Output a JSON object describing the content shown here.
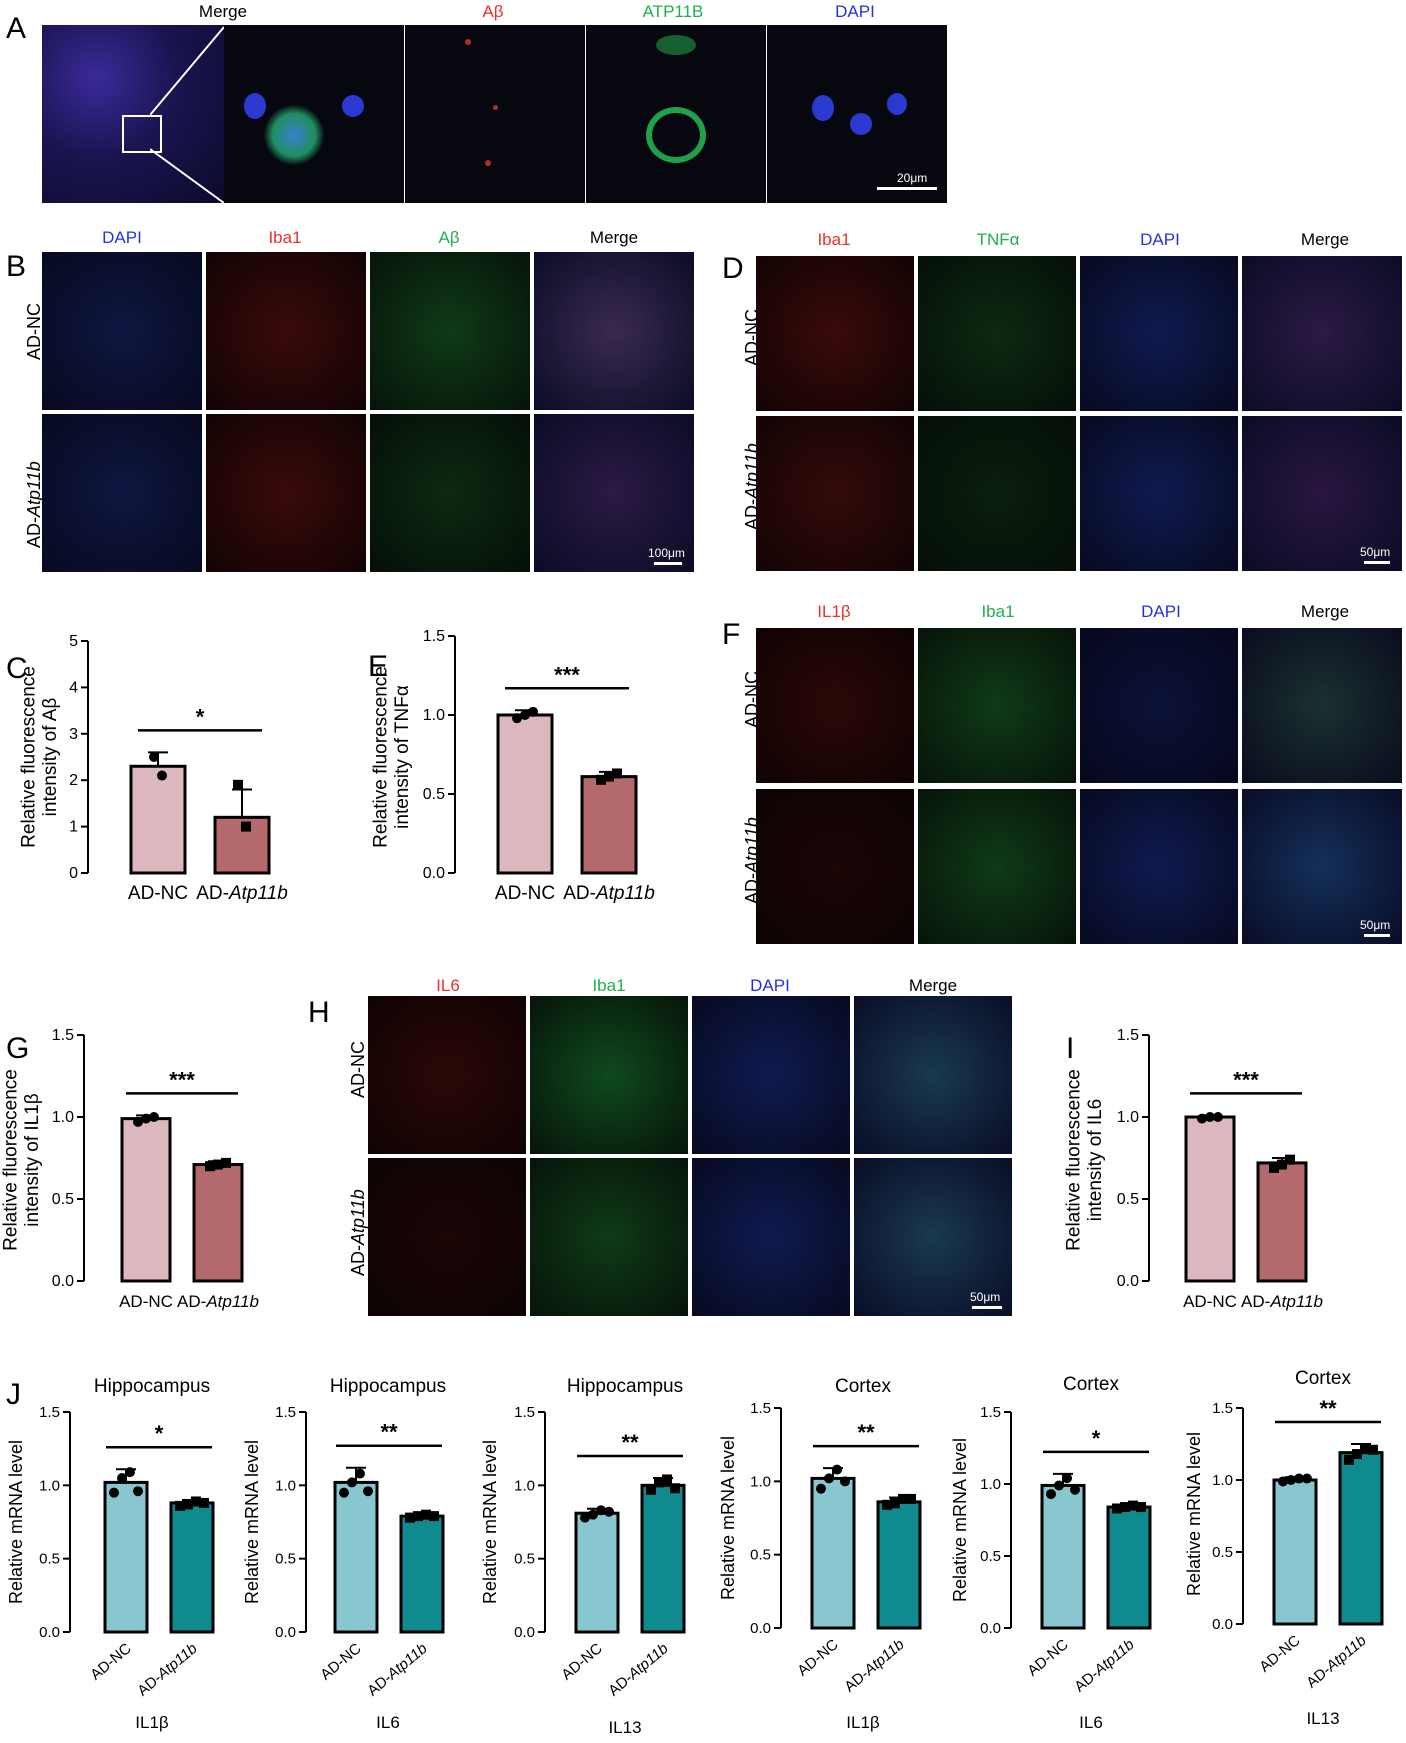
{
  "panels": {
    "A": {
      "letter": "A",
      "channels": [
        "Merge",
        "Aβ",
        "ATP11B",
        "DAPI"
      ],
      "scale": "20μm"
    },
    "B": {
      "letter": "B",
      "channels": [
        "DAPI",
        "Iba1",
        "Aβ",
        "Merge"
      ],
      "rows": [
        "AD-NC",
        "AD-Atp11b"
      ],
      "scale": "100μm"
    },
    "D": {
      "letter": "D",
      "channels": [
        "Iba1",
        "TNFα",
        "DAPI",
        "Merge"
      ],
      "rows": [
        "AD-NC",
        "AD-Atp11b"
      ],
      "scale": "50μm"
    },
    "F": {
      "letter": "F",
      "channels": [
        "IL1β",
        "Iba1",
        "DAPI",
        "Merge"
      ],
      "rows": [
        "AD-NC",
        "AD-Atp11b"
      ],
      "scale": "50μm"
    },
    "H": {
      "letter": "H",
      "channels": [
        "IL6",
        "Iba1",
        "DAPI",
        "Merge"
      ],
      "rows": [
        "AD-NC",
        "AD-Atp11b"
      ],
      "scale": "50μm"
    }
  },
  "colors": {
    "red": "#e8312b",
    "green": "#1fb04a",
    "blue": "#2233dd",
    "pink": "#dcb8be",
    "rose": "#b46a6c",
    "teal_light": "#88c7cf",
    "teal_dark": "#0f8a8f"
  },
  "chart_data": [
    {
      "id": "C",
      "letter": "C",
      "type": "bar",
      "categories": [
        "AD-NC",
        "AD-Atp11b"
      ],
      "values": [
        2.3,
        1.2
      ],
      "errors": [
        0.3,
        0.6
      ],
      "points": [
        [
          2.5,
          2.1
        ],
        [
          1.9,
          1.0
        ]
      ],
      "ylabel": "Relative fluorescence intensity of Aβ",
      "ylim": [
        0,
        5
      ],
      "ticks": [
        0,
        1,
        2,
        3,
        4,
        5
      ],
      "sig": "*",
      "title": "",
      "xlabel": ""
    },
    {
      "id": "E",
      "letter": "E",
      "type": "bar",
      "categories": [
        "AD-NC",
        "AD-Atp11b"
      ],
      "values": [
        1.0,
        0.61
      ],
      "errors": [
        0.03,
        0.03
      ],
      "points": [
        [
          0.98,
          1.0,
          1.02
        ],
        [
          0.59,
          0.61,
          0.63
        ]
      ],
      "ylabel": "Relative fluorescence intensity of TNFα",
      "ylim": [
        0,
        1.5
      ],
      "ticks": [
        "0.0",
        "0.5",
        "1.0",
        "1.5"
      ],
      "sig": "***",
      "title": "",
      "xlabel": ""
    },
    {
      "id": "G",
      "letter": "G",
      "type": "bar",
      "categories": [
        "AD-NC",
        "AD-Atp11b"
      ],
      "values": [
        0.99,
        0.71
      ],
      "errors": [
        0.02,
        0.02
      ],
      "points": [
        [
          0.97,
          0.99,
          1.0
        ],
        [
          0.7,
          0.71,
          0.72
        ]
      ],
      "ylabel": "Relative fluorescence intensity of IL1β",
      "ylim": [
        0,
        1.5
      ],
      "ticks": [
        "0.0",
        "0.5",
        "1.0",
        "1.5"
      ],
      "sig": "***",
      "title": "",
      "xlabel": ""
    },
    {
      "id": "I",
      "letter": "I",
      "type": "bar",
      "categories": [
        "AD-NC",
        "AD-Atp11b"
      ],
      "values": [
        1.0,
        0.72
      ],
      "errors": [
        0.01,
        0.03
      ],
      "points": [
        [
          0.99,
          1.0,
          1.0
        ],
        [
          0.69,
          0.71,
          0.74
        ]
      ],
      "ylabel": "Relative fluorescence intensity of IL6",
      "ylim": [
        0,
        1.5
      ],
      "ticks": [
        "0.0",
        "0.5",
        "1.0",
        "1.5"
      ],
      "sig": "***",
      "title": "",
      "xlabel": ""
    },
    {
      "id": "J1",
      "letter": "J",
      "type": "bar",
      "title": "Hippocampus",
      "xlabel": "IL1β",
      "categories": [
        "AD-NC",
        "AD-Atp11b"
      ],
      "values": [
        1.02,
        0.88
      ],
      "errors": [
        0.09,
        0.02
      ],
      "points": [
        [
          0.95,
          1.05,
          1.09,
          0.96
        ],
        [
          0.86,
          0.87,
          0.89,
          0.88
        ]
      ],
      "ylabel": "Relative mRNA level",
      "ylim": [
        0,
        1.5
      ],
      "ticks": [
        "0.0",
        "0.5",
        "1.0",
        "1.5"
      ],
      "sig": "*"
    },
    {
      "id": "J2",
      "type": "bar",
      "title": "Hippocampus",
      "xlabel": "IL6",
      "categories": [
        "AD-NC",
        "AD-Atp11b"
      ],
      "values": [
        1.02,
        0.79
      ],
      "errors": [
        0.1,
        0.01
      ],
      "points": [
        [
          0.95,
          1.02,
          1.08,
          0.96
        ],
        [
          0.78,
          0.79,
          0.8,
          0.79
        ]
      ],
      "ylabel": "Relative mRNA level",
      "ylim": [
        0,
        1.5
      ],
      "ticks": [
        "0.0",
        "0.5",
        "1.0",
        "1.5"
      ],
      "sig": "**"
    },
    {
      "id": "J3",
      "type": "bar",
      "title": "Hippocampus",
      "xlabel": "IL13",
      "categories": [
        "AD-NC",
        "AD-Atp11b"
      ],
      "values": [
        0.81,
        1.0
      ],
      "errors": [
        0.03,
        0.05
      ],
      "points": [
        [
          0.78,
          0.8,
          0.83,
          0.82
        ],
        [
          0.97,
          1.02,
          1.04,
          0.98
        ]
      ],
      "ylabel": "Relative mRNA level",
      "ylim": [
        0,
        1.5
      ],
      "ticks": [
        "0.0",
        "0.5",
        "1.0",
        "1.5"
      ],
      "sig": "**"
    },
    {
      "id": "J4",
      "type": "bar",
      "title": "Cortex",
      "xlabel": "IL1β",
      "categories": [
        "AD-NC",
        "AD-Atp11b"
      ],
      "values": [
        1.02,
        0.86
      ],
      "errors": [
        0.07,
        0.03
      ],
      "points": [
        [
          0.95,
          1.02,
          1.08,
          1.0
        ],
        [
          0.84,
          0.85,
          0.88,
          0.88
        ]
      ],
      "ylabel": "Relative mRNA level",
      "ylim": [
        0,
        1.5
      ],
      "ticks": [
        "0.0",
        "0.5",
        "1.0",
        "1.5"
      ],
      "sig": "**"
    },
    {
      "id": "J5",
      "type": "bar",
      "title": "Cortex",
      "xlabel": "IL6",
      "categories": [
        "AD-NC",
        "AD-Atp11b"
      ],
      "values": [
        0.99,
        0.84
      ],
      "errors": [
        0.08,
        0.01
      ],
      "points": [
        [
          0.93,
          0.99,
          1.04,
          0.96
        ],
        [
          0.83,
          0.84,
          0.85,
          0.84
        ]
      ],
      "ylabel": "Relative mRNA level",
      "ylim": [
        0,
        1.5
      ],
      "ticks": [
        "0.0",
        "0.5",
        "1.0",
        "1.5"
      ],
      "sig": "*"
    },
    {
      "id": "J6",
      "type": "bar",
      "title": "Cortex",
      "xlabel": "IL13",
      "categories": [
        "AD-NC",
        "AD-Atp11b"
      ],
      "values": [
        1.0,
        1.19
      ],
      "errors": [
        0.02,
        0.06
      ],
      "points": [
        [
          0.99,
          1.0,
          1.01,
          1.01
        ],
        [
          1.14,
          1.18,
          1.22,
          1.21
        ]
      ],
      "ylabel": "Relative mRNA level",
      "ylim": [
        0,
        1.5
      ],
      "ticks": [
        "0.0",
        "0.5",
        "1.0",
        "1.5"
      ],
      "sig": "**"
    }
  ]
}
